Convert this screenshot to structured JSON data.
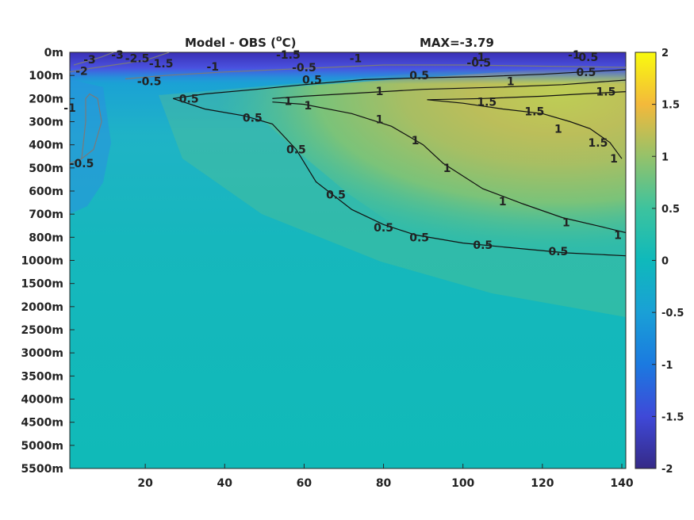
{
  "title": {
    "left": "Model - OBS (",
    "sup": "o",
    "unit": "C)",
    "right": "MAX=-3.79"
  },
  "chart_data": {
    "type": "heatmap",
    "x": {
      "ticks": [
        "20",
        "40",
        "60",
        "80",
        "100",
        "120",
        "140"
      ],
      "values": [
        20,
        40,
        60,
        80,
        100,
        120,
        140
      ],
      "range": [
        1,
        141
      ]
    },
    "y": {
      "ticks": [
        "0m",
        "100m",
        "200m",
        "300m",
        "400m",
        "500m",
        "600m",
        "700m",
        "800m",
        "1000m",
        "1500m",
        "2000m",
        "2500m",
        "3000m",
        "3500m",
        "4000m",
        "4500m",
        "5000m",
        "5500m"
      ],
      "reversed": true
    },
    "colorbar": {
      "ticks": [
        "2",
        "1.5",
        "1",
        "0.5",
        "0",
        "-0.5",
        "-1",
        "-1.5",
        "-2"
      ],
      "range": [
        -2,
        2
      ],
      "colormap": "parula"
    },
    "contours_positive": [
      {
        "level": 0.5,
        "points": [
          [
            27,
            200
          ],
          [
            35,
            245
          ],
          [
            45,
            275
          ],
          [
            52,
            310
          ],
          [
            58,
            420
          ],
          [
            63,
            560
          ],
          [
            72,
            680
          ],
          [
            80,
            745
          ],
          [
            88,
            790
          ],
          [
            100,
            850
          ],
          [
            115,
            900
          ],
          [
            126,
            935
          ],
          [
            135,
            950
          ],
          [
            141,
            960
          ]
        ]
      },
      {
        "level": 0.5,
        "points": [
          [
            27,
            200
          ],
          [
            35,
            180
          ],
          [
            48,
            160
          ],
          [
            60,
            140
          ],
          [
            75,
            118
          ],
          [
            90,
            110
          ],
          [
            105,
            105
          ],
          [
            120,
            95
          ],
          [
            130,
            85
          ],
          [
            141,
            75
          ]
        ]
      },
      {
        "level": 1,
        "points": [
          [
            52,
            200
          ],
          [
            60,
            190
          ],
          [
            75,
            175
          ],
          [
            90,
            160
          ],
          [
            110,
            150
          ],
          [
            125,
            140
          ],
          [
            141,
            120
          ]
        ]
      },
      {
        "level": 1,
        "points": [
          [
            52,
            215
          ],
          [
            60,
            225
          ],
          [
            72,
            265
          ],
          [
            82,
            320
          ],
          [
            90,
            400
          ],
          [
            95,
            480
          ],
          [
            105,
            590
          ],
          [
            115,
            655
          ],
          [
            125,
            715
          ],
          [
            135,
            755
          ],
          [
            141,
            780
          ]
        ]
      },
      {
        "level": 1.5,
        "points": [
          [
            91,
            205
          ],
          [
            100,
            220
          ],
          [
            110,
            245
          ],
          [
            120,
            265
          ],
          [
            127,
            300
          ],
          [
            132,
            330
          ],
          [
            137,
            390
          ],
          [
            140,
            460
          ]
        ]
      },
      {
        "level": 1.5,
        "points": [
          [
            91,
            205
          ],
          [
            105,
            200
          ],
          [
            120,
            190
          ],
          [
            130,
            180
          ],
          [
            141,
            170
          ]
        ]
      }
    ],
    "contours_negative": [
      {
        "level": -0.5,
        "points": [
          [
            1,
            480
          ],
          [
            4,
            460
          ],
          [
            7,
            420
          ],
          [
            9,
            300
          ],
          [
            8,
            200
          ],
          [
            6,
            180
          ],
          [
            5,
            200
          ],
          [
            5,
            300
          ],
          [
            4,
            460
          ]
        ]
      },
      {
        "level": -0.5,
        "points": [
          [
            15,
            115
          ],
          [
            25,
            100
          ],
          [
            40,
            85
          ],
          [
            60,
            70
          ],
          [
            80,
            55
          ],
          [
            100,
            55
          ],
          [
            120,
            60
          ],
          [
            141,
            65
          ]
        ]
      },
      {
        "level": -1.5,
        "points": [
          [
            1,
            85
          ],
          [
            6,
            70
          ],
          [
            12,
            55
          ],
          [
            20,
            35
          ],
          [
            26,
            0
          ]
        ]
      },
      {
        "level": -2.5,
        "points": [
          [
            2,
            55
          ],
          [
            5,
            40
          ],
          [
            9,
            20
          ],
          [
            12,
            0
          ]
        ]
      }
    ],
    "contour_labels": [
      {
        "text": "0.5",
        "x": 31,
        "y": 200,
        "color": "black"
      },
      {
        "text": "0.5",
        "x": 47,
        "y": 283,
        "color": "black"
      },
      {
        "text": "0.5",
        "x": 58,
        "y": 420,
        "color": "black"
      },
      {
        "text": "0.5",
        "x": 68,
        "y": 615,
        "color": "black"
      },
      {
        "text": "0.5",
        "x": 80,
        "y": 758,
        "color": "black"
      },
      {
        "text": "0.5",
        "x": 89,
        "y": 800,
        "color": "black"
      },
      {
        "text": "0.5",
        "x": 105,
        "y": 865,
        "color": "black"
      },
      {
        "text": "0.5",
        "x": 124,
        "y": 920,
        "color": "black"
      },
      {
        "text": "0.5",
        "x": 62,
        "y": 118,
        "color": "black"
      },
      {
        "text": "0.5",
        "x": 89,
        "y": 100,
        "color": "black"
      },
      {
        "text": "0.5",
        "x": 131,
        "y": 85,
        "color": "black"
      },
      {
        "text": "1",
        "x": 79,
        "y": 168,
        "color": "black"
      },
      {
        "text": "1",
        "x": 112,
        "y": 125,
        "color": "black"
      },
      {
        "text": "1",
        "x": 56,
        "y": 210,
        "color": "black"
      },
      {
        "text": "1",
        "x": 61,
        "y": 230,
        "color": "black"
      },
      {
        "text": "1",
        "x": 79,
        "y": 290,
        "color": "black"
      },
      {
        "text": "1",
        "x": 88,
        "y": 380,
        "color": "black"
      },
      {
        "text": "1",
        "x": 96,
        "y": 500,
        "color": "black"
      },
      {
        "text": "1",
        "x": 110,
        "y": 645,
        "color": "black"
      },
      {
        "text": "1",
        "x": 126,
        "y": 735,
        "color": "black"
      },
      {
        "text": "1",
        "x": 139,
        "y": 790,
        "color": "black"
      },
      {
        "text": "1.5",
        "x": 106,
        "y": 215,
        "color": "black"
      },
      {
        "text": "1.5",
        "x": 118,
        "y": 255,
        "color": "black"
      },
      {
        "text": "1.5",
        "x": 136,
        "y": 170,
        "color": "black"
      },
      {
        "text": "1.5",
        "x": 134,
        "y": 390,
        "color": "black"
      },
      {
        "text": "1",
        "x": 124,
        "y": 330,
        "color": "black"
      },
      {
        "text": "1",
        "x": 138,
        "y": 460,
        "color": "black"
      },
      {
        "text": "-3",
        "x": 6,
        "y": 30,
        "color": "gray"
      },
      {
        "text": "-3",
        "x": 13,
        "y": 10,
        "color": "gray"
      },
      {
        "text": "-2.5",
        "x": 18,
        "y": 25,
        "color": "gray"
      },
      {
        "text": "-2",
        "x": 4,
        "y": 80,
        "color": "gray"
      },
      {
        "text": "-1.5",
        "x": 24,
        "y": 48,
        "color": "gray"
      },
      {
        "text": "-1",
        "x": 37,
        "y": 62,
        "color": "gray"
      },
      {
        "text": "-1.5",
        "x": 56,
        "y": 10,
        "color": "gray"
      },
      {
        "text": "-1",
        "x": 73,
        "y": 25,
        "color": "gray"
      },
      {
        "text": "-0.5",
        "x": 21,
        "y": 125,
        "color": "gray"
      },
      {
        "text": "-0.5",
        "x": 60,
        "y": 65,
        "color": "gray"
      },
      {
        "text": "-0.5",
        "x": 104,
        "y": 45,
        "color": "gray"
      },
      {
        "text": "-0.5",
        "x": 131,
        "y": 20,
        "color": "gray"
      },
      {
        "text": "-1",
        "x": 1,
        "y": 240,
        "color": "gray"
      },
      {
        "text": "-0.5",
        "x": 4,
        "y": 480,
        "color": "gray"
      },
      {
        "text": "-1",
        "x": 104,
        "y": 20,
        "color": "gray"
      },
      {
        "text": "-1",
        "x": 128,
        "y": 10,
        "color": "gray"
      }
    ]
  }
}
